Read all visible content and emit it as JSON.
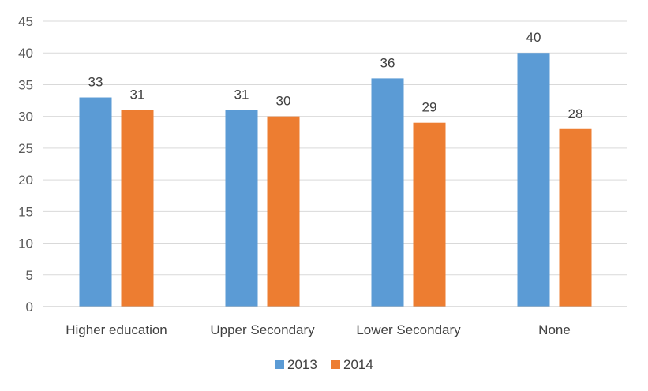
{
  "chart_data": {
    "type": "bar",
    "categories": [
      "Higher education",
      "Upper Secondary",
      "Lower Secondary",
      "None"
    ],
    "series": [
      {
        "name": "2013",
        "color": "#5B9BD5",
        "values": [
          33,
          31,
          36,
          40
        ]
      },
      {
        "name": "2014",
        "color": "#ED7D31",
        "values": [
          31,
          30,
          29,
          28
        ]
      }
    ],
    "title": "",
    "xlabel": "",
    "ylabel": "",
    "ylim": [
      0,
      45
    ],
    "yticks": [
      0,
      5,
      10,
      15,
      20,
      25,
      30,
      35,
      40,
      45
    ],
    "grid": true,
    "legend": "bottom"
  }
}
